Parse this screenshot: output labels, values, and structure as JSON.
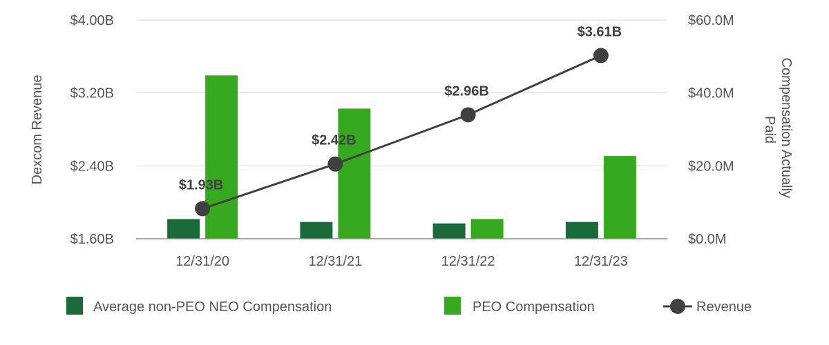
{
  "chart_data": {
    "type": "bar",
    "categories": [
      "12/31/20",
      "12/31/21",
      "12/31/22",
      "12/31/23"
    ],
    "y_left": {
      "label": "Dexcom Revenue",
      "range": [
        1.6,
        4.0
      ],
      "ticks": [
        1.6,
        2.4,
        3.2,
        4.0
      ],
      "tick_labels": [
        "$1.60B",
        "$2.40B",
        "$3.20B",
        "$4.00B"
      ]
    },
    "y_right": {
      "label_lines": [
        "Compensation Actually",
        "Paid"
      ],
      "range": [
        0,
        60
      ],
      "ticks": [
        0,
        20,
        40,
        60
      ],
      "tick_labels": [
        "$0.0M",
        "$20.0M",
        "$40.0M",
        "$60.0M"
      ]
    },
    "series": [
      {
        "name": "Average non-PEO NEO Compensation",
        "type": "bar",
        "axis": "right",
        "color": "#1a6b3a",
        "values": [
          5.4,
          4.6,
          4.2,
          4.6
        ]
      },
      {
        "name": "PEO Compensation",
        "type": "bar",
        "axis": "right",
        "color": "#36aa1e",
        "values": [
          44.8,
          35.7,
          5.4,
          22.7
        ]
      },
      {
        "name": "Revenue",
        "type": "line",
        "axis": "left",
        "color": "#404040",
        "values": [
          1.93,
          2.42,
          2.96,
          3.61
        ],
        "data_labels": [
          "$1.93B",
          "$2.42B",
          "$2.96B",
          "$3.61B"
        ]
      }
    ],
    "grid": true,
    "legend_position": "bottom"
  }
}
